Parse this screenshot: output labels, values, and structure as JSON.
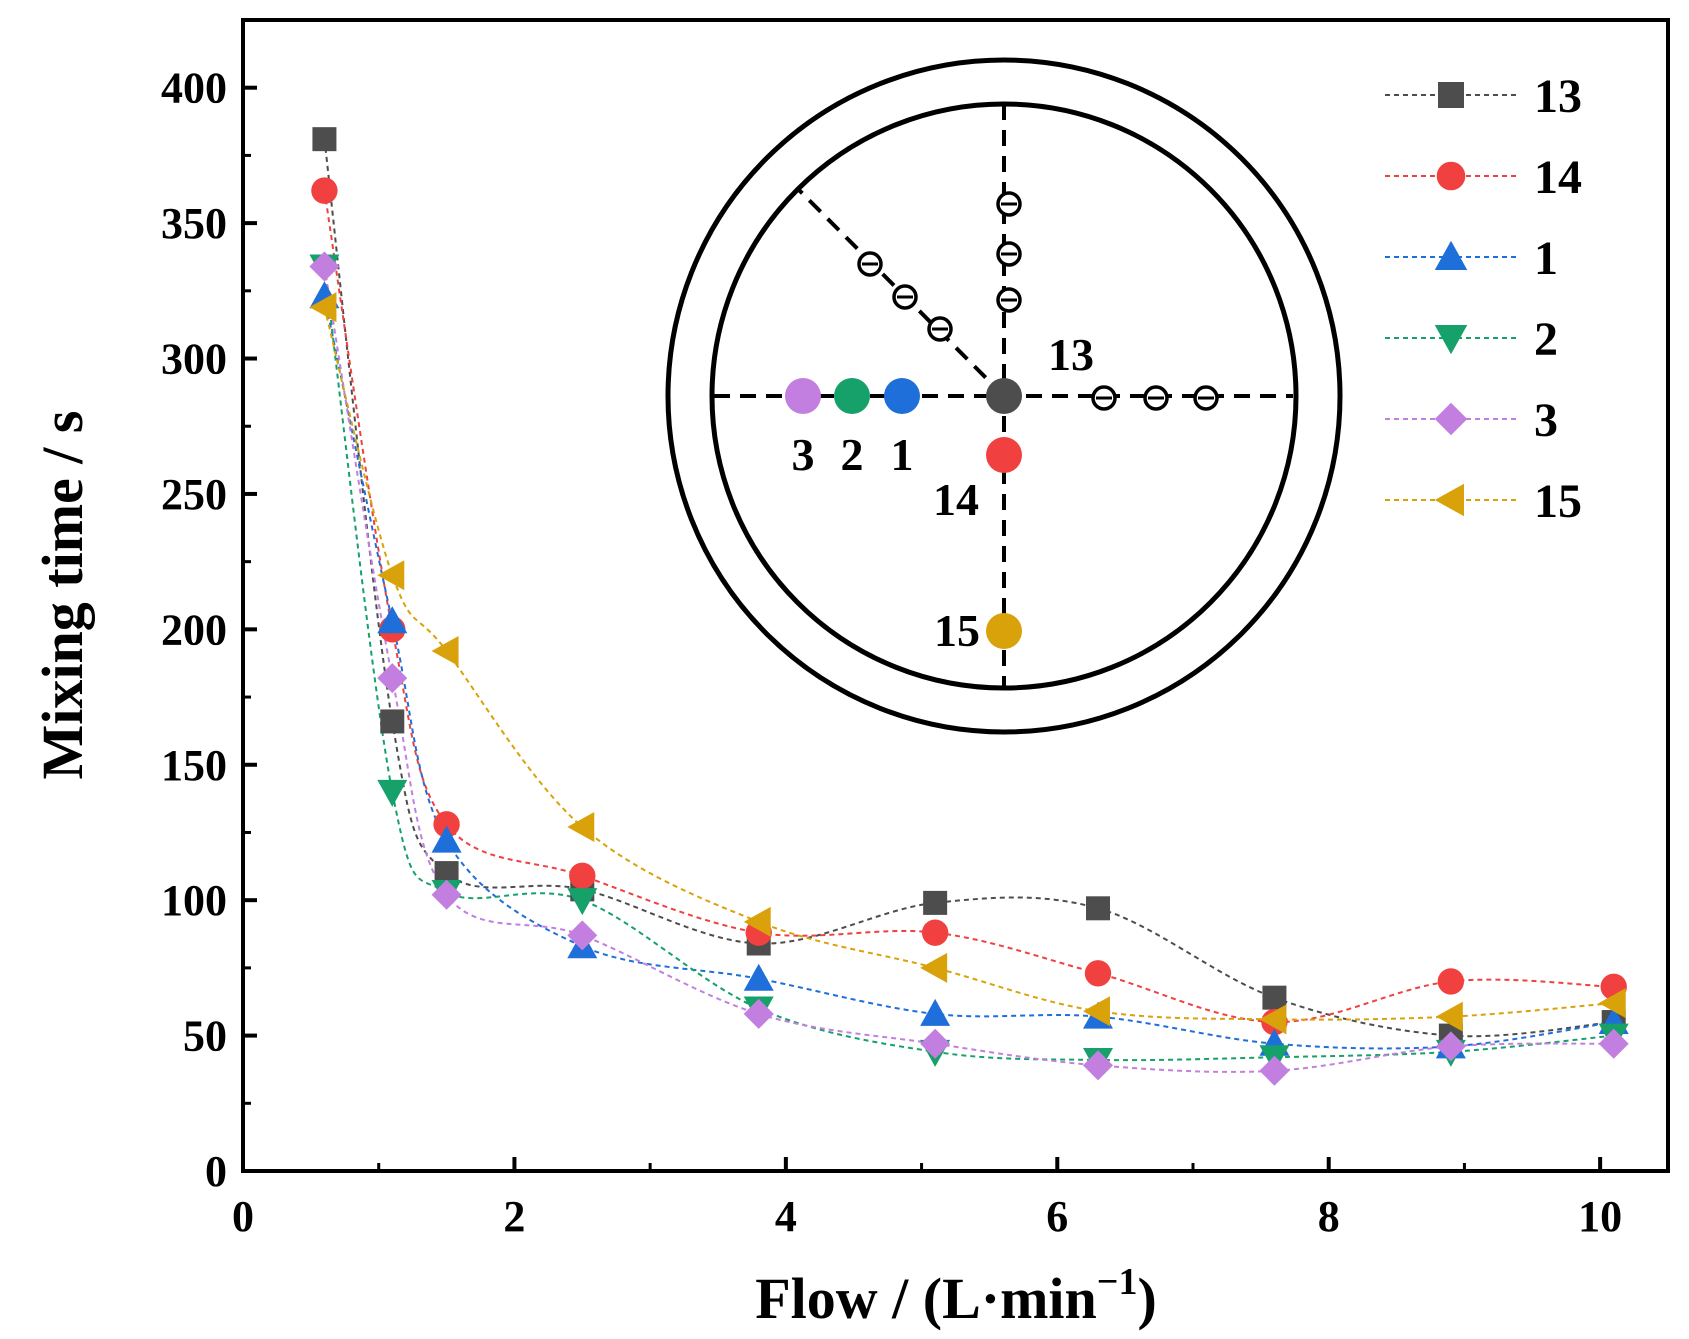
{
  "chart_data": {
    "type": "line",
    "title": "",
    "xlabel": "Flow / (L·min",
    "xlabel_sup": "−1",
    "xlabel_close": ")",
    "ylabel": "Mixing time / s",
    "xlim": [
      0,
      10.5
    ],
    "ylim": [
      0,
      425
    ],
    "xticks": [
      0,
      2,
      4,
      6,
      8,
      10
    ],
    "xtick_labels": [
      "0",
      "2",
      "4",
      "6",
      "8",
      "10"
    ],
    "yticks": [
      0,
      50,
      100,
      150,
      200,
      250,
      300,
      350,
      400
    ],
    "ytick_labels": [
      "0",
      "50",
      "100",
      "150",
      "200",
      "250",
      "300",
      "350",
      "400"
    ],
    "legend_position": "top-right",
    "series": [
      {
        "name": "13",
        "color": "#4d4d4d",
        "marker": "square",
        "x": [
          0.6,
          1.1,
          1.5,
          2.5,
          3.8,
          5.1,
          6.3,
          7.6,
          8.9,
          10.1
        ],
        "values": [
          381,
          166,
          110,
          104,
          84,
          99,
          97,
          64,
          50,
          55
        ]
      },
      {
        "name": "14",
        "color": "#f0403f",
        "marker": "circle",
        "x": [
          0.6,
          1.1,
          1.5,
          2.5,
          3.8,
          5.1,
          6.3,
          7.6,
          8.9,
          10.1
        ],
        "values": [
          362,
          200,
          128,
          109,
          88,
          88,
          73,
          55,
          70,
          68
        ]
      },
      {
        "name": "1",
        "color": "#1e6fd9",
        "marker": "triangle-up",
        "x": [
          0.6,
          1.1,
          1.5,
          2.5,
          3.8,
          5.1,
          6.3,
          7.6,
          8.9,
          10.1
        ],
        "values": [
          323,
          203,
          122,
          83,
          71,
          58,
          57,
          47,
          46,
          55
        ]
      },
      {
        "name": "2",
        "color": "#16a06a",
        "marker": "triangle-down",
        "x": [
          0.6,
          1.1,
          1.5,
          2.5,
          3.8,
          5.1,
          6.3,
          7.6,
          8.9,
          10.1
        ],
        "values": [
          334,
          140,
          103,
          100,
          60,
          44,
          41,
          42,
          44,
          50
        ]
      },
      {
        "name": "3",
        "color": "#c27fe0",
        "marker": "diamond",
        "x": [
          0.6,
          1.1,
          1.5,
          2.5,
          3.8,
          5.1,
          6.3,
          7.6,
          8.9,
          10.1
        ],
        "values": [
          334,
          182,
          102,
          87,
          58,
          47,
          39,
          37,
          46,
          47
        ]
      },
      {
        "name": "15",
        "color": "#d9a20a",
        "marker": "triangle-left",
        "x": [
          0.6,
          1.1,
          1.5,
          2.5,
          3.8,
          5.1,
          6.3,
          7.6,
          8.9,
          10.1
        ],
        "values": [
          319,
          220,
          192,
          127,
          92,
          75,
          59,
          56,
          57,
          62
        ]
      }
    ],
    "inset": {
      "description_labels": [
        "13",
        "14",
        "15",
        "3",
        "2",
        "1"
      ],
      "points": [
        {
          "label": "13",
          "color": "#4d4d4d"
        },
        {
          "label": "14",
          "color": "#f0403f"
        },
        {
          "label": "15",
          "color": "#d9a20a"
        },
        {
          "label": "3",
          "color": "#c27fe0"
        },
        {
          "label": "2",
          "color": "#16a06a"
        },
        {
          "label": "1",
          "color": "#1e6fd9"
        }
      ]
    }
  }
}
